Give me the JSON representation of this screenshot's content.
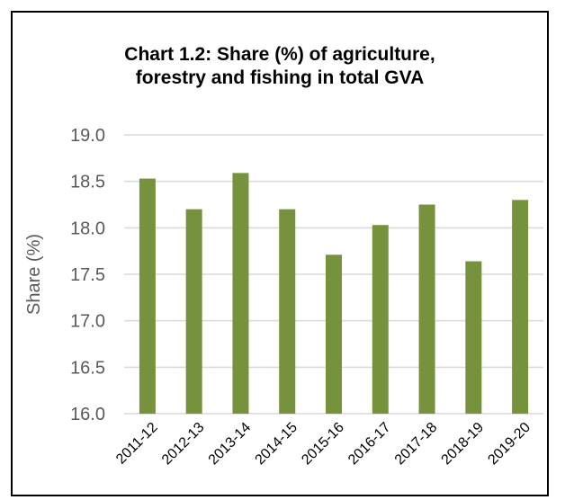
{
  "chart_data": {
    "type": "bar",
    "title_lines": [
      "Chart 1.2: Share (%) of agriculture,",
      "forestry and fishing in total GVA"
    ],
    "xlabel": "",
    "ylabel": "Share (%)",
    "categories": [
      "2011-12",
      "2012-13",
      "2013-14",
      "2014-15",
      "2015-16",
      "2016-17",
      "2017-18",
      "2018-19",
      "2019-20"
    ],
    "values": [
      18.53,
      18.2,
      18.59,
      18.2,
      17.71,
      18.03,
      18.25,
      17.64,
      18.3
    ],
    "ylim": [
      16.0,
      19.0
    ],
    "yticks": [
      "16.0",
      "16.5",
      "17.0",
      "17.5",
      "18.0",
      "18.5",
      "19.0"
    ],
    "grid": true,
    "legend": "none",
    "bar_color": "#76923C",
    "grid_color": "#D9D9D9"
  }
}
